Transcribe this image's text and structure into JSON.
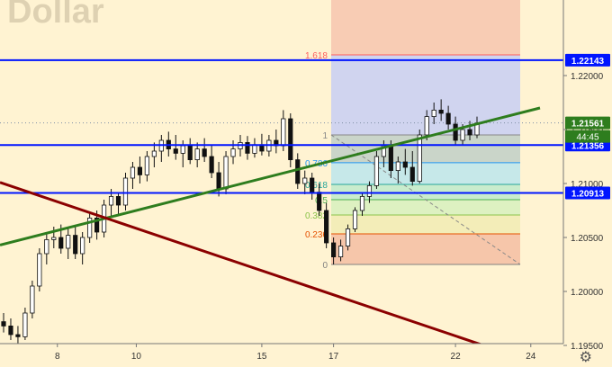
{
  "symbol_watermark": "Dollar",
  "settings_icon": "gear-icon",
  "chart_data": {
    "type": "candlestick",
    "title": "",
    "y_ticks": [
      "1.22000",
      "1.21500",
      "1.21000",
      "1.20500",
      "1.20000",
      "1.19500"
    ],
    "x_ticks": [
      "8",
      "10",
      "15",
      "17",
      "22",
      "24"
    ],
    "ylim": [
      1.193,
      1.227
    ],
    "grid": false,
    "colors": {
      "background": "#fff3d2",
      "candle": "#111111",
      "hline": "#0015ff",
      "uptrend": "#2e7d1e",
      "downtrend": "#8b0000",
      "price_badge": "#0015ff",
      "last_badge": "#2e7d1e"
    },
    "horizontal_levels": [
      {
        "price": 1.22143,
        "label": "1.22143"
      },
      {
        "price": 1.21356,
        "label": "1.21356"
      },
      {
        "price": 1.20913,
        "label": "1.20913"
      }
    ],
    "last_price": {
      "value": "1.21561",
      "countdown": "44:45"
    },
    "fibonacci": {
      "low": 1.2025,
      "high": 1.2145,
      "levels": [
        {
          "ratio": 1.618,
          "label": "1.618",
          "color": "#ff5c5c",
          "fill": "#cdd2f0"
        },
        {
          "ratio": 1,
          "label": "1",
          "color": "#888888",
          "fill": "#c7d3c8"
        },
        {
          "ratio": 0.786,
          "label": "0.786",
          "color": "#2196f3",
          "fill": "#c3e7ea"
        },
        {
          "ratio": 0.618,
          "label": "0.618",
          "color": "#26a69a",
          "fill": "#c6ebcc"
        },
        {
          "ratio": 0.5,
          "label": "0.5",
          "color": "#4caf50",
          "fill": "#dbf0c0"
        },
        {
          "ratio": 0.382,
          "label": "0.382",
          "color": "#8bc34a",
          "fill": "#f2ecb6"
        },
        {
          "ratio": 0.236,
          "label": "0.236",
          "color": "#e65100",
          "fill": "#f5c3a8"
        },
        {
          "ratio": 0,
          "label": "0",
          "color": "#808080",
          "fill": null
        }
      ],
      "top_fill": "#f7c8b0"
    },
    "trendlines": [
      {
        "name": "",
        "color": "#2e7d1e",
        "points": [
          [
            0,
            1.2043
          ],
          [
            600,
            1.217
          ]
        ]
      },
      {
        "name": "",
        "color": "#8b0000",
        "points": [
          [
            0,
            1.2101
          ],
          [
            580,
            1.1938
          ]
        ]
      }
    ],
    "series": [
      {
        "name": "",
        "values": [
          [
            1.1972,
            1.198,
            1.1962,
            1.1968
          ],
          [
            1.1968,
            1.1975,
            1.1955,
            1.196
          ],
          [
            1.196,
            1.1968,
            1.195,
            1.1958
          ],
          [
            1.1958,
            1.1985,
            1.1955,
            1.198
          ],
          [
            1.198,
            1.201,
            1.1975,
            1.2005
          ],
          [
            1.2005,
            1.204,
            1.2,
            1.2035
          ],
          [
            1.2035,
            1.2055,
            1.2025,
            1.2048
          ],
          [
            1.2048,
            1.206,
            1.204,
            1.205
          ],
          [
            1.205,
            1.2062,
            1.2035,
            1.204
          ],
          [
            1.204,
            1.2058,
            1.203,
            1.2052
          ],
          [
            1.2052,
            1.206,
            1.203,
            1.2035
          ],
          [
            1.2035,
            1.2055,
            1.2025,
            1.205
          ],
          [
            1.205,
            1.2072,
            1.2045,
            1.2068
          ],
          [
            1.2068,
            1.2075,
            1.2048,
            1.2055
          ],
          [
            1.2055,
            1.2085,
            1.205,
            1.208
          ],
          [
            1.208,
            1.2095,
            1.207,
            1.2088
          ],
          [
            1.2088,
            1.2092,
            1.2072,
            1.208
          ],
          [
            1.208,
            1.211,
            1.2075,
            1.2105
          ],
          [
            1.2105,
            1.212,
            1.2095,
            1.2115
          ],
          [
            1.2115,
            1.2125,
            1.21,
            1.2108
          ],
          [
            1.2108,
            1.213,
            1.2102,
            1.2125
          ],
          [
            1.2125,
            1.2138,
            1.2115,
            1.213
          ],
          [
            1.213,
            1.2145,
            1.212,
            1.214
          ],
          [
            1.214,
            1.2148,
            1.2125,
            1.2132
          ],
          [
            1.2132,
            1.2145,
            1.2122,
            1.2128
          ],
          [
            1.2128,
            1.214,
            1.2115,
            1.2135
          ],
          [
            1.2135,
            1.2142,
            1.2118,
            1.2122
          ],
          [
            1.2122,
            1.2138,
            1.2115,
            1.2132
          ],
          [
            1.2132,
            1.2142,
            1.212,
            1.2125
          ],
          [
            1.2125,
            1.2135,
            1.2105,
            1.211
          ],
          [
            1.211,
            1.212,
            1.2088,
            1.2095
          ],
          [
            1.2095,
            1.213,
            1.209,
            1.2125
          ],
          [
            1.2125,
            1.214,
            1.2118,
            1.2132
          ],
          [
            1.2132,
            1.2145,
            1.2125,
            1.2138
          ],
          [
            1.2138,
            1.2144,
            1.2122,
            1.2128
          ],
          [
            1.2128,
            1.2142,
            1.2124,
            1.2136
          ],
          [
            1.2136,
            1.2146,
            1.2126,
            1.213
          ],
          [
            1.213,
            1.2145,
            1.2125,
            1.214
          ],
          [
            1.214,
            1.215,
            1.2128,
            1.2135
          ],
          [
            1.2135,
            1.2168,
            1.213,
            1.216
          ],
          [
            1.216,
            1.2165,
            1.2115,
            1.2122
          ],
          [
            1.2122,
            1.2128,
            1.2095,
            1.21
          ],
          [
            1.21,
            1.2112,
            1.209,
            1.2105
          ],
          [
            1.2105,
            1.211,
            1.2085,
            1.2092
          ],
          [
            1.2092,
            1.21,
            1.207,
            1.2075
          ],
          [
            1.2075,
            1.2082,
            1.204,
            1.2045
          ],
          [
            1.2045,
            1.205,
            1.2025,
            1.2032
          ],
          [
            1.2032,
            1.2048,
            1.2028,
            1.2042
          ],
          [
            1.2042,
            1.2062,
            1.2038,
            1.2058
          ],
          [
            1.2058,
            1.2078,
            1.2055,
            1.2075
          ],
          [
            1.2075,
            1.2092,
            1.207,
            1.2088
          ],
          [
            1.2088,
            1.2102,
            1.2082,
            1.2098
          ],
          [
            1.2098,
            1.213,
            1.2095,
            1.2125
          ],
          [
            1.2125,
            1.214,
            1.2115,
            1.2135
          ],
          [
            1.2135,
            1.214,
            1.2105,
            1.2112
          ],
          [
            1.2112,
            1.2125,
            1.21,
            1.212
          ],
          [
            1.212,
            1.2132,
            1.2108,
            1.2115
          ],
          [
            1.2115,
            1.213,
            1.2098,
            1.2102
          ],
          [
            1.2102,
            1.215,
            1.21,
            1.2145
          ],
          [
            1.2145,
            1.2168,
            1.214,
            1.2162
          ],
          [
            1.2162,
            1.2175,
            1.2155,
            1.2168
          ],
          [
            1.2168,
            1.2178,
            1.2158,
            1.2165
          ],
          [
            1.2165,
            1.2172,
            1.215,
            1.2155
          ],
          [
            1.2155,
            1.2162,
            1.2135,
            1.214
          ],
          [
            1.214,
            1.2155,
            1.2135,
            1.215
          ],
          [
            1.215,
            1.2158,
            1.214,
            1.2145
          ],
          [
            1.2145,
            1.2162,
            1.2142,
            1.2156
          ]
        ]
      }
    ]
  }
}
